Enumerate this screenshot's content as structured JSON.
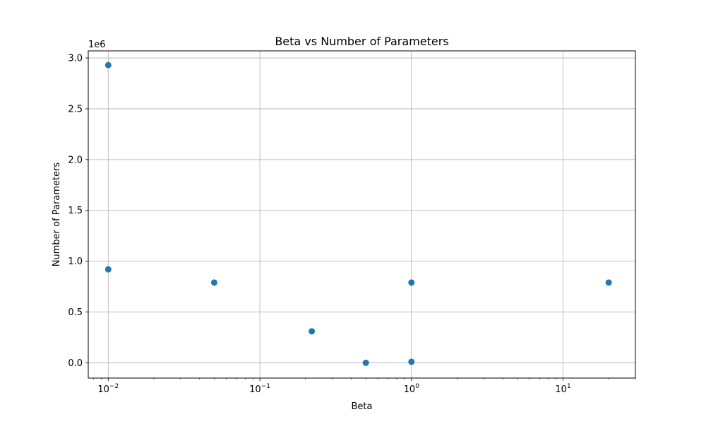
{
  "chart_data": {
    "type": "scatter",
    "title": "Beta vs Number of Parameters",
    "xlabel": "Beta",
    "ylabel": "Number of Parameters",
    "x_scale": "log",
    "y_offset_label": "1e6",
    "xlim": [
      0.00738,
      30
    ],
    "ylim": [
      -150000,
      3070000
    ],
    "x_ticks": [
      {
        "value": 0.01,
        "base": "10",
        "exp": "−2"
      },
      {
        "value": 0.1,
        "base": "10",
        "exp": "−1"
      },
      {
        "value": 1,
        "base": "10",
        "exp": "0"
      },
      {
        "value": 10,
        "base": "10",
        "exp": "1"
      }
    ],
    "y_ticks": [
      {
        "value": 0,
        "label": "0.0"
      },
      {
        "value": 500000,
        "label": "0.5"
      },
      {
        "value": 1000000,
        "label": "1.0"
      },
      {
        "value": 1500000,
        "label": "1.5"
      },
      {
        "value": 2000000,
        "label": "2.0"
      },
      {
        "value": 2500000,
        "label": "2.5"
      },
      {
        "value": 3000000,
        "label": "3.0"
      }
    ],
    "grid": true,
    "marker_color": "#1f77b4",
    "points": [
      {
        "x": 0.01,
        "y": 2930000
      },
      {
        "x": 0.01,
        "y": 920000
      },
      {
        "x": 0.05,
        "y": 790000
      },
      {
        "x": 0.22,
        "y": 310000
      },
      {
        "x": 0.5,
        "y": 0
      },
      {
        "x": 1,
        "y": 10000
      },
      {
        "x": 1,
        "y": 790000
      },
      {
        "x": 20,
        "y": 790000
      }
    ]
  }
}
